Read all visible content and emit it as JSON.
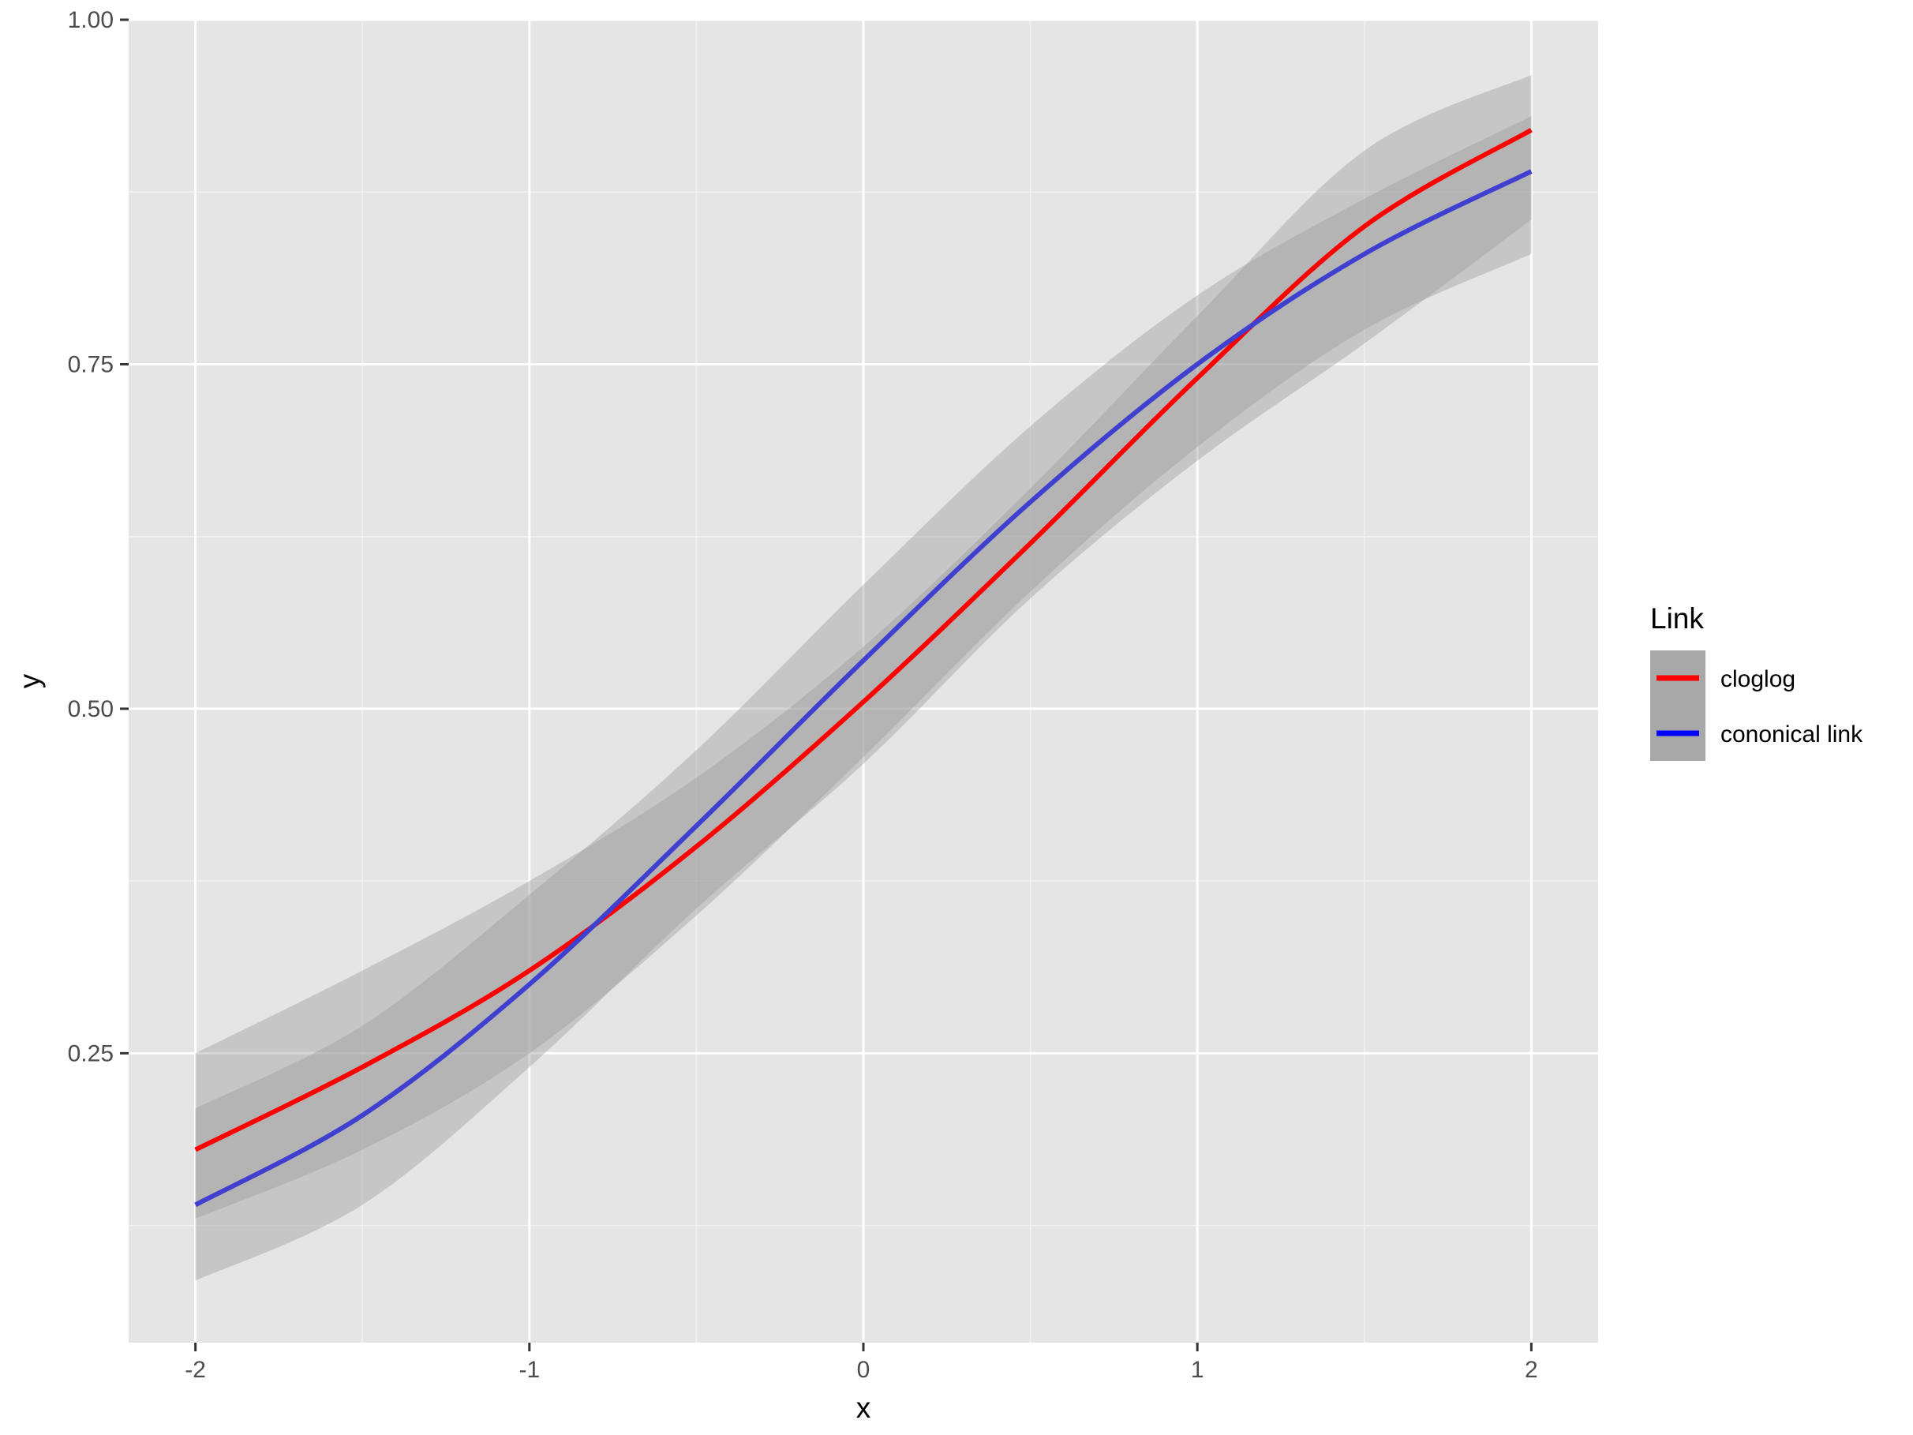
{
  "chart_data": {
    "type": "line",
    "xlabel": "x",
    "ylabel": "y",
    "xlim": [
      -2.2,
      2.2
    ],
    "ylim": [
      0.04,
      1.0
    ],
    "x_ticks": [
      -2,
      -1,
      0,
      1,
      2
    ],
    "x_tick_labels": [
      "-2",
      "-1",
      "0",
      "1",
      "2"
    ],
    "y_ticks": [
      0.25,
      0.5,
      0.75,
      1.0
    ],
    "y_tick_labels": [
      "0.25",
      "0.50",
      "0.75",
      "1.00"
    ],
    "grid": true,
    "legend": {
      "title": "Link",
      "position": "right"
    },
    "x": [
      -2,
      -1.5,
      -1,
      -0.5,
      0,
      0.5,
      1,
      1.5,
      2
    ],
    "series": [
      {
        "name": "cloglog",
        "color": "#ff0000",
        "values": [
          0.18,
          0.24,
          0.31,
          0.4,
          0.505,
          0.62,
          0.74,
          0.85,
          0.92
        ],
        "ci_lower": [
          0.13,
          0.18,
          0.25,
          0.35,
          0.465,
          0.585,
          0.69,
          0.775,
          0.83
        ],
        "ci_upper": [
          0.25,
          0.31,
          0.375,
          0.45,
          0.545,
          0.66,
          0.785,
          0.905,
          0.96
        ]
      },
      {
        "name": "cononical link",
        "color": "#3f3fd0",
        "values": [
          0.14,
          0.205,
          0.3,
          0.415,
          0.535,
          0.65,
          0.75,
          0.83,
          0.89
        ],
        "ci_lower": [
          0.085,
          0.14,
          0.24,
          0.355,
          0.46,
          0.58,
          0.68,
          0.765,
          0.855
        ],
        "ci_upper": [
          0.21,
          0.27,
          0.365,
          0.47,
          0.59,
          0.705,
          0.8,
          0.87,
          0.93
        ]
      }
    ],
    "legend_colors": [
      "#ff0000",
      "#0000ff"
    ],
    "panel_background": "#e5e5e5",
    "ribbon_color": "#999999"
  }
}
